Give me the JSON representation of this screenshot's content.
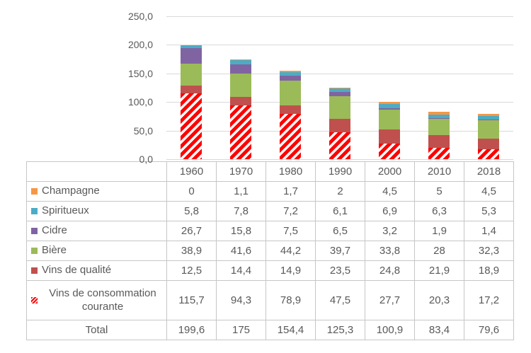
{
  "colors": {
    "text": "#595959",
    "grid": "#D9D9D9",
    "table_border": "#C6C6C6",
    "hatch_red": "#FF0000"
  },
  "chart_data": {
    "type": "bar",
    "stacked": true,
    "title": "",
    "xlabel": "",
    "ylabel": "",
    "categories": [
      "1960",
      "1970",
      "1980",
      "1990",
      "2000",
      "2010",
      "2018"
    ],
    "series": [
      {
        "name": "Vins de consommation courante",
        "fill": "hatch",
        "values": [
          115.7,
          94.3,
          78.9,
          47.5,
          27.7,
          20.3,
          17.2
        ]
      },
      {
        "name": "Vins de qualité",
        "fill": "#C0504D",
        "values": [
          12.5,
          14.4,
          14.9,
          23.5,
          24.8,
          21.9,
          18.9
        ]
      },
      {
        "name": "Bière",
        "fill": "#9BBB59",
        "values": [
          38.9,
          41.6,
          44.2,
          39.7,
          33.8,
          28,
          32.3
        ]
      },
      {
        "name": "Cidre",
        "fill": "#8064A2",
        "values": [
          26.7,
          15.8,
          7.5,
          6.5,
          3.2,
          1.9,
          1.4
        ]
      },
      {
        "name": "Spiritueux",
        "fill": "#4BACC6",
        "values": [
          5.8,
          7.8,
          7.2,
          6.1,
          6.9,
          6.3,
          5.3
        ]
      },
      {
        "name": "Champagne",
        "fill": "#F79646",
        "values": [
          0,
          1.1,
          1.7,
          2,
          4.5,
          5,
          4.5
        ]
      }
    ],
    "totals": [
      199.6,
      175,
      154.4,
      125.3,
      100.9,
      83.4,
      79.6
    ],
    "ylim": [
      0,
      250
    ],
    "grid": "on",
    "legend_position": "left-column-of-data-table",
    "yticks": [
      {
        "label": "250,0",
        "value": 250
      },
      {
        "label": "200,0",
        "value": 200
      },
      {
        "label": "150,0",
        "value": 150
      },
      {
        "label": "100,0",
        "value": 100
      },
      {
        "label": "50,0",
        "value": 50
      },
      {
        "label": "0,0",
        "value": 0
      }
    ]
  },
  "table": {
    "col_headers": [
      "1960",
      "1970",
      "1980",
      "1990",
      "2000",
      "2010",
      "2018"
    ],
    "rows": [
      {
        "label": "Champagne",
        "key_color": "#F79646",
        "values": [
          "0",
          "1,1",
          "1,7",
          "2",
          "4,5",
          "5",
          "4,5"
        ]
      },
      {
        "label": "Spiritueux",
        "key_color": "#4BACC6",
        "values": [
          "5,8",
          "7,8",
          "7,2",
          "6,1",
          "6,9",
          "6,3",
          "5,3"
        ]
      },
      {
        "label": "Cidre",
        "key_color": "#8064A2",
        "values": [
          "26,7",
          "15,8",
          "7,5",
          "6,5",
          "3,2",
          "1,9",
          "1,4"
        ]
      },
      {
        "label": "Bière",
        "key_color": "#9BBB59",
        "values": [
          "38,9",
          "41,6",
          "44,2",
          "39,7",
          "33,8",
          "28",
          "32,3"
        ]
      },
      {
        "label": "Vins de qualité",
        "key_color": "#C0504D",
        "values": [
          "12,5",
          "14,4",
          "14,9",
          "23,5",
          "24,8",
          "21,9",
          "18,9"
        ]
      },
      {
        "label": "Vins de consommation courante",
        "key_hatch": true,
        "two_line": true,
        "values": [
          "115,7",
          "94,3",
          "78,9",
          "47,5",
          "27,7",
          "20,3",
          "17,2"
        ]
      },
      {
        "label": "Total",
        "is_total": true,
        "values": [
          "199,6",
          "175",
          "154,4",
          "125,3",
          "100,9",
          "83,4",
          "79,6"
        ]
      }
    ]
  }
}
